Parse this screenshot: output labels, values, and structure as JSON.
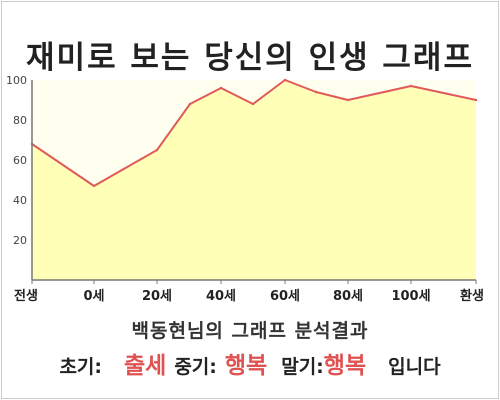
{
  "chart_data": {
    "type": "area",
    "title": "재미로 보는 당신의 인생 그래프",
    "categories": [
      "전생",
      "0세",
      "20세",
      "40세",
      "60세",
      "80세",
      "100세",
      "환생"
    ],
    "x_tick_labels": [
      "전생",
      "0세",
      "20세",
      "40세",
      "60세",
      "80세",
      "100세",
      "환생"
    ],
    "series": [
      {
        "x": [
          "전생",
          "0세",
          "20세",
          "30세",
          "40세",
          "50세",
          "60세",
          "70세",
          "80세",
          "100세",
          "환생"
        ],
        "values": [
          68,
          47,
          65,
          88,
          96,
          88,
          100,
          94,
          90,
          97,
          90
        ]
      }
    ],
    "ylim": [
      0,
      100
    ],
    "y_ticks": [
      20,
      40,
      60,
      80,
      100
    ],
    "grid": false,
    "colors": {
      "line": "#e05a5a",
      "fill": "#ffffb8",
      "plot_bg": "#fffff0",
      "axis": "#777777"
    }
  },
  "analysis": {
    "heading": "백동현님의 그래프 분석결과",
    "early_label": "초기:",
    "early_value": "출세",
    "mid_label": "중기:",
    "mid_value": "행복",
    "late_label": "말기:",
    "late_value": "행복",
    "ending": "입니다"
  }
}
